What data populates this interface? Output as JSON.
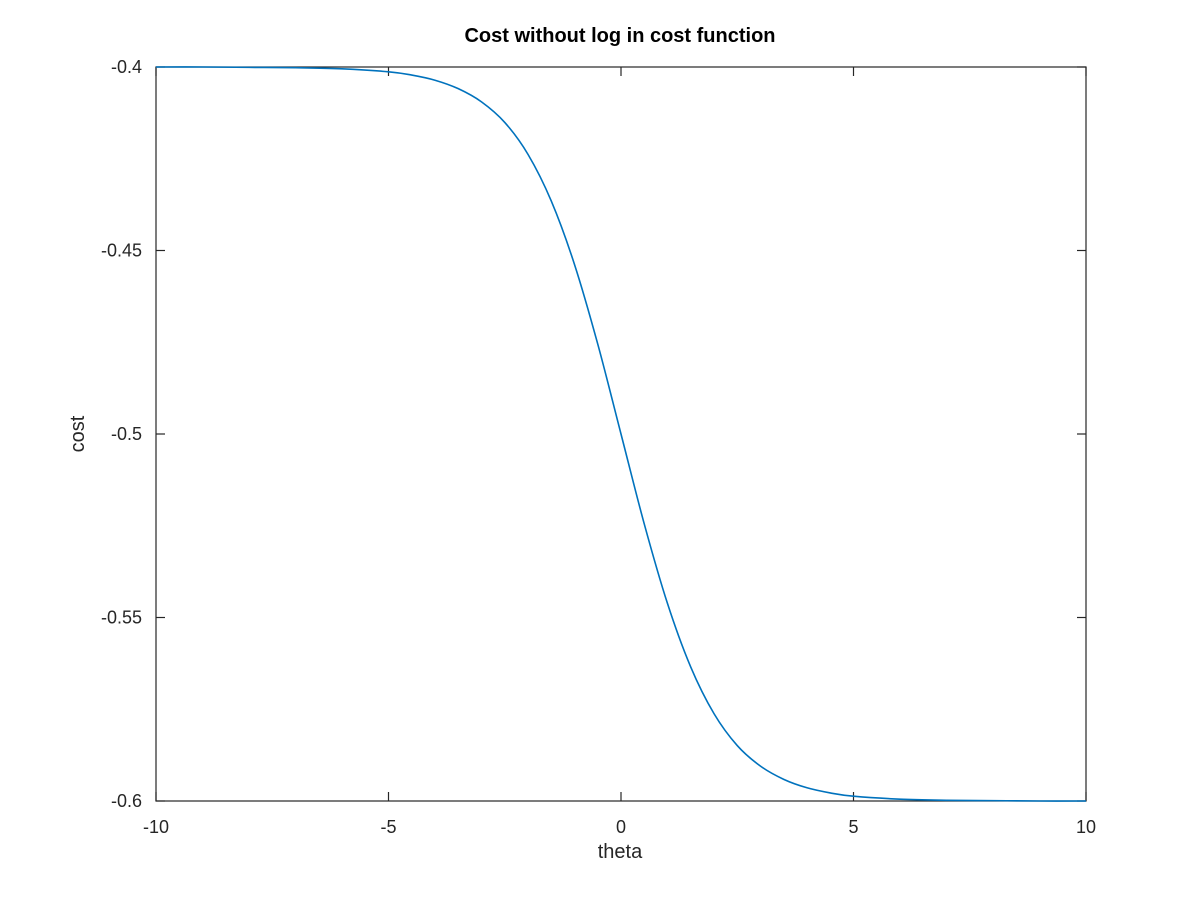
{
  "chart_data": {
    "type": "line",
    "title": "Cost without log in cost function",
    "xlabel": "theta",
    "ylabel": "cost",
    "xlim": [
      -10,
      10
    ],
    "ylim": [
      -0.6,
      -0.4
    ],
    "xticks": [
      -10,
      -5,
      0,
      5,
      10
    ],
    "xtick_labels": [
      "-10",
      "-5",
      "0",
      "5",
      "10"
    ],
    "yticks": [
      -0.6,
      -0.55,
      -0.5,
      -0.45,
      -0.4
    ],
    "ytick_labels": [
      "-0.6",
      "-0.55",
      "-0.5",
      "-0.45",
      "-0.4"
    ],
    "grid": false,
    "box": true,
    "series": [
      {
        "color": "#0072bd",
        "x": [
          -10,
          -9,
          -8,
          -7,
          -6,
          -5,
          -4.5,
          -4,
          -3.5,
          -3,
          -2.5,
          -2,
          -1.5,
          -1,
          -0.5,
          0,
          0.5,
          1,
          1.5,
          2,
          2.5,
          3,
          3.5,
          4,
          4.5,
          5,
          6,
          7,
          8,
          9,
          10
        ],
        "y": [
          -0.4,
          -0.4,
          -0.4001,
          -0.4002,
          -0.4005,
          -0.4013,
          -0.4022,
          -0.4036,
          -0.4059,
          -0.4095,
          -0.4151,
          -0.4238,
          -0.4365,
          -0.4538,
          -0.4755,
          -0.5,
          -0.5245,
          -0.5462,
          -0.5635,
          -0.5762,
          -0.5849,
          -0.5905,
          -0.5941,
          -0.5964,
          -0.5978,
          -0.5987,
          -0.5995,
          -0.5998,
          -0.5999,
          -0.6,
          -0.6
        ]
      }
    ]
  }
}
